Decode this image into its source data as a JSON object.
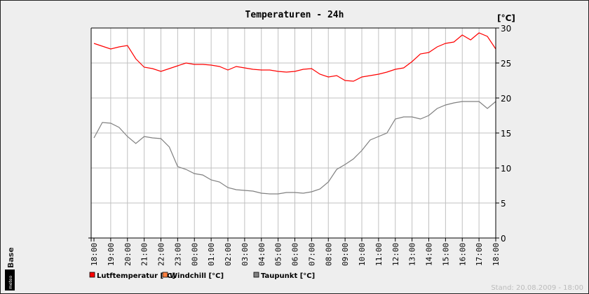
{
  "chart_data": {
    "type": "line",
    "title": "Temperaturen - 24h",
    "ylabel": "[°C]",
    "ylim": [
      0,
      30
    ],
    "yticks": [
      0,
      5,
      10,
      15,
      20,
      25,
      30
    ],
    "xticks": [
      "18:00",
      "19:00",
      "20:00",
      "21:00",
      "22:00",
      "23:00",
      "00:00",
      "01:00",
      "02:00",
      "03:00",
      "04:00",
      "05:00",
      "06:00",
      "07:00",
      "08:00",
      "09:00",
      "10:00",
      "11:00",
      "12:00",
      "13:00",
      "14:00",
      "15:00",
      "16:00",
      "17:00",
      "18:00"
    ],
    "x_hours_from_start": [
      0,
      0.5,
      1,
      1.5,
      2,
      2.5,
      3,
      3.5,
      4,
      4.5,
      5,
      5.5,
      6,
      6.5,
      7,
      7.5,
      8,
      8.5,
      9,
      9.5,
      10,
      10.5,
      11,
      11.5,
      12,
      12.5,
      13,
      13.5,
      14,
      14.5,
      15,
      15.5,
      16,
      16.5,
      17,
      17.5,
      18,
      18.5,
      19,
      19.5,
      20,
      20.5,
      21,
      21.5,
      22,
      22.5,
      23,
      23.5,
      24
    ],
    "grid": true,
    "legend_position": "bottom-left",
    "series": [
      {
        "name": "Lutftemperatur [°C]",
        "color": "#ff0000",
        "values": [
          27.8,
          27.4,
          27.0,
          27.3,
          27.5,
          25.6,
          24.4,
          24.2,
          23.8,
          24.2,
          24.6,
          25.0,
          24.8,
          24.8,
          24.7,
          24.5,
          24.0,
          24.5,
          24.3,
          24.1,
          24.0,
          24.0,
          23.8,
          23.7,
          23.8,
          24.1,
          24.2,
          23.4,
          23.0,
          23.2,
          22.5,
          22.4,
          23.0,
          23.2,
          23.4,
          23.7,
          24.1,
          24.3,
          25.2,
          26.3,
          26.5,
          27.3,
          27.8,
          28.0,
          29.0,
          28.3,
          29.3,
          28.8,
          27.0
        ]
      },
      {
        "name": "Windchill [°C]",
        "color": "#ff8040",
        "values": []
      },
      {
        "name": "Taupunkt [°C]",
        "color": "#808080",
        "values": [
          14.3,
          16.5,
          16.4,
          15.8,
          14.5,
          13.5,
          14.5,
          14.3,
          14.2,
          13.0,
          10.2,
          9.8,
          9.2,
          9.0,
          8.3,
          8.0,
          7.2,
          6.9,
          6.8,
          6.7,
          6.4,
          6.3,
          6.3,
          6.5,
          6.5,
          6.4,
          6.6,
          7.0,
          8.0,
          9.8,
          10.5,
          11.3,
          12.5,
          14.0,
          14.5,
          15.0,
          17.0,
          17.3,
          17.3,
          17.0,
          17.5,
          18.5,
          19.0,
          19.3,
          19.5,
          19.5,
          19.5,
          18.5,
          19.5
        ]
      }
    ]
  },
  "footer": {
    "stand": "Stand: 20.08.2009 - 18:00",
    "logo_text": "meteo Base"
  }
}
